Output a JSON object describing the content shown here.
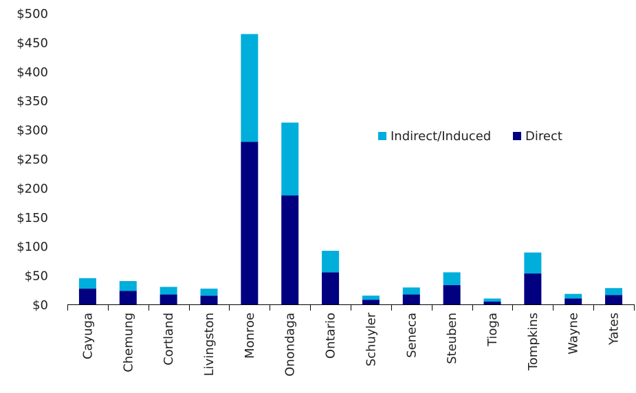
{
  "chart_data": {
    "type": "bar",
    "stacked": true,
    "title": "",
    "xlabel": "",
    "ylabel": "",
    "ylim": [
      0,
      500
    ],
    "yticks": [
      0,
      50,
      100,
      150,
      200,
      250,
      300,
      350,
      400,
      450,
      500
    ],
    "ytick_labels": [
      "$0",
      "$50",
      "$100",
      "$150",
      "$200",
      "$250",
      "$300",
      "$350",
      "$400",
      "$450",
      "$500"
    ],
    "categories": [
      "Cayuga",
      "Chemung",
      "Cortland",
      "Livingston",
      "Monroe",
      "Onondaga",
      "Ontario",
      "Schuyler",
      "Seneca",
      "Steuben",
      "Tioga",
      "Tompkins",
      "Wayne",
      "Yates"
    ],
    "series": [
      {
        "name": "Direct",
        "color": "#000080",
        "values": [
          27,
          23,
          17,
          15,
          279,
          187,
          55,
          8,
          17,
          33,
          5,
          53,
          10,
          16
        ]
      },
      {
        "name": "Indirect/Induced",
        "color": "#00AEDB",
        "values": [
          18,
          17,
          13,
          12,
          185,
          125,
          37,
          7,
          12,
          22,
          5,
          36,
          8,
          12
        ]
      }
    ],
    "legend": {
      "placement": "center-right",
      "entries": [
        "Indirect/Induced",
        "Direct"
      ]
    },
    "grid": false
  }
}
